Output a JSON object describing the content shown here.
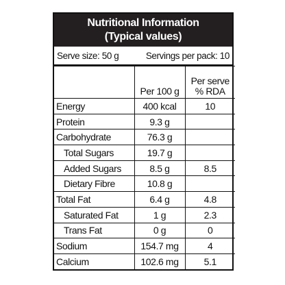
{
  "header": {
    "title": "Nutritional Information",
    "subtitle": "(Typical values)"
  },
  "serving": {
    "serve_size": "Serve size: 50 g",
    "servings_per_pack": "Servings per pack: 10"
  },
  "table": {
    "columns": {
      "per_100g": "Per 100 g",
      "per_serve": [
        "Per serve",
        "% RDA"
      ]
    },
    "rows": [
      [
        "Energy",
        "400 kcal",
        "10"
      ],
      [
        "Protein",
        "9.3 g"
      ],
      [
        "Carbohydrate",
        "76.3 g"
      ],
      [
        "Total Sugars",
        "19.7 g"
      ],
      [
        "Added Sugars",
        "8.5 g",
        "8.5"
      ],
      [
        "Dietary Fibre",
        "10.8 g"
      ],
      [
        "Total Fat",
        "6.4 g",
        "4.8"
      ],
      [
        "Saturated Fat",
        "1 g",
        "2.3"
      ],
      [
        "Trans Fat",
        "0 g",
        "0"
      ],
      [
        "Sodium",
        "154.7 mg",
        "4"
      ],
      [
        "Calcium",
        "102.6 mg",
        "5.1"
      ]
    ]
  }
}
